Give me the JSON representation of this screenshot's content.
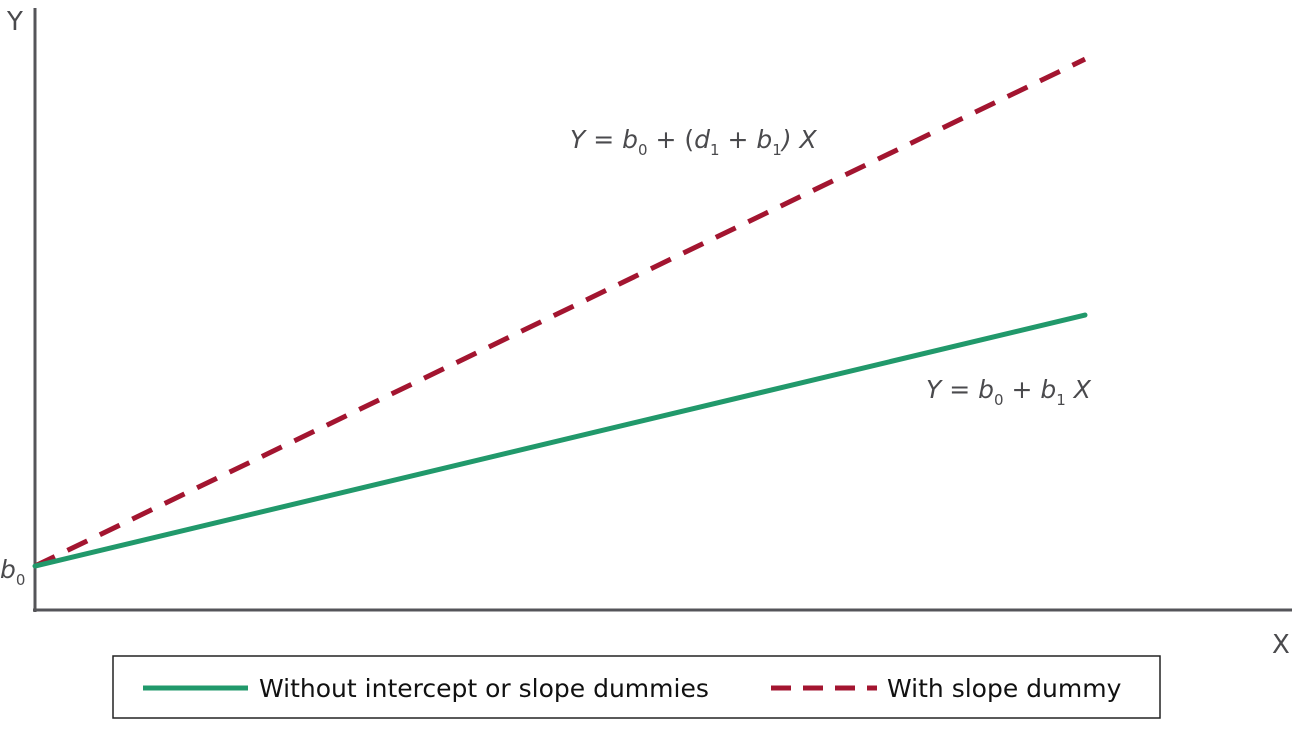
{
  "chart_data": {
    "type": "line",
    "xlabel": "X",
    "ylabel": "Y",
    "xlim": [
      0,
      1
    ],
    "ylim": [
      0,
      1
    ],
    "intercept_label": {
      "base": "b",
      "sub": "0"
    },
    "series": [
      {
        "name": "Without intercept or slope dummies",
        "style": "solid",
        "color": "#21996b",
        "x": [
          0,
          1
        ],
        "y": [
          0.073,
          0.49
        ],
        "equation": {
          "parts": [
            {
              "t": "Y",
              "k": "var"
            },
            {
              "t": " = ",
              "k": "op"
            },
            {
              "t": "b",
              "k": "var"
            },
            {
              "t": "0",
              "k": "sub"
            },
            {
              "t": " + ",
              "k": "op"
            },
            {
              "t": "b",
              "k": "var"
            },
            {
              "t": "1",
              "k": "sub"
            },
            {
              "t": " X",
              "k": "var"
            }
          ]
        }
      },
      {
        "name": "With slope dummy",
        "style": "dashed",
        "color": "#a31530",
        "x": [
          0,
          1
        ],
        "y": [
          0.073,
          0.915
        ],
        "equation": {
          "parts": [
            {
              "t": "Y",
              "k": "var"
            },
            {
              "t": " = ",
              "k": "op"
            },
            {
              "t": "b",
              "k": "var"
            },
            {
              "t": "0",
              "k": "sub"
            },
            {
              "t": " + (",
              "k": "op"
            },
            {
              "t": "d",
              "k": "var"
            },
            {
              "t": "1",
              "k": "sub"
            },
            {
              "t": " + ",
              "k": "op"
            },
            {
              "t": "b",
              "k": "var"
            },
            {
              "t": "1",
              "k": "sub"
            },
            {
              "t": ") X",
              "k": "var"
            }
          ]
        }
      }
    ],
    "legend": {
      "position": "bottom"
    },
    "grid": false
  }
}
